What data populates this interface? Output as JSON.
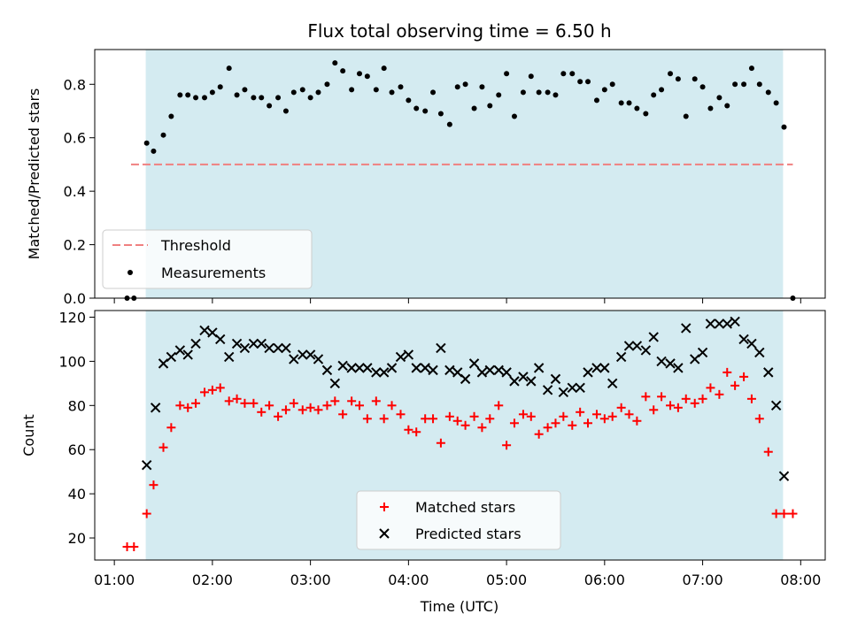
{
  "chart_data": {
    "type": "scatter",
    "title": "Flux total observing time = 6.50 h",
    "x_tick_labels": [
      "01:00",
      "02:00",
      "03:00",
      "04:00",
      "05:00",
      "06:00",
      "07:00",
      "08:00"
    ],
    "x_ticks_hours": [
      1,
      2,
      3,
      4,
      5,
      6,
      7,
      8
    ],
    "xlim_hours": [
      0.8,
      8.25
    ],
    "xlabel": "Time (UTC)",
    "observing_window_hours": [
      1.32,
      7.82
    ],
    "colors": {
      "window": "#d4ebf1",
      "threshold": "#f08080",
      "measurements": "#000000",
      "matched": "#ff0000",
      "predicted": "#000000"
    },
    "panels": [
      {
        "ylabel": "Matched/Predicted stars",
        "ylim": [
          0,
          0.93
        ],
        "y_ticks": [
          0.0,
          0.2,
          0.4,
          0.6,
          0.8
        ],
        "y_tick_labels": [
          "0.0",
          "0.2",
          "0.4",
          "0.6",
          "0.8"
        ],
        "legend": {
          "location": "lower-left",
          "entries": [
            "Threshold",
            "Measurements"
          ]
        },
        "threshold": {
          "name": "Threshold",
          "y": 0.5,
          "x_range_hours": [
            1.17,
            7.92
          ]
        },
        "measurements": {
          "name": "Measurements",
          "x_hours": [
            1.13,
            1.2,
            1.33,
            1.4,
            1.5,
            1.58,
            1.67,
            1.75,
            1.83,
            1.92,
            2.0,
            2.08,
            2.17,
            2.25,
            2.33,
            2.42,
            2.5,
            2.58,
            2.67,
            2.75,
            2.83,
            2.92,
            3.0,
            3.08,
            3.17,
            3.25,
            3.33,
            3.42,
            3.5,
            3.58,
            3.67,
            3.75,
            3.83,
            3.92,
            4.0,
            4.08,
            4.17,
            4.25,
            4.33,
            4.42,
            4.5,
            4.58,
            4.67,
            4.75,
            4.83,
            4.92,
            5.0,
            5.08,
            5.17,
            5.25,
            5.33,
            5.42,
            5.5,
            5.58,
            5.67,
            5.75,
            5.83,
            5.92,
            6.0,
            6.08,
            6.17,
            6.25,
            6.33,
            6.42,
            6.5,
            6.58,
            6.67,
            6.75,
            6.83,
            6.92,
            7.0,
            7.08,
            7.17,
            7.25,
            7.33,
            7.42,
            7.5,
            7.58,
            7.67,
            7.75,
            7.83,
            7.92
          ],
          "y": [
            0.0,
            0.0,
            0.58,
            0.55,
            0.61,
            0.68,
            0.76,
            0.76,
            0.75,
            0.75,
            0.77,
            0.79,
            0.86,
            0.76,
            0.78,
            0.75,
            0.75,
            0.72,
            0.75,
            0.7,
            0.77,
            0.78,
            0.75,
            0.77,
            0.8,
            0.88,
            0.85,
            0.78,
            0.84,
            0.83,
            0.78,
            0.86,
            0.77,
            0.79,
            0.74,
            0.71,
            0.7,
            0.77,
            0.69,
            0.65,
            0.79,
            0.8,
            0.71,
            0.79,
            0.72,
            0.76,
            0.84,
            0.68,
            0.77,
            0.83,
            0.77,
            0.77,
            0.76,
            0.84,
            0.84,
            0.81,
            0.81,
            0.74,
            0.78,
            0.8,
            0.73,
            0.73,
            0.71,
            0.69,
            0.76,
            0.78,
            0.84,
            0.82,
            0.68,
            0.82,
            0.79,
            0.71,
            0.75,
            0.72,
            0.8,
            0.8,
            0.86,
            0.8,
            0.77,
            0.73,
            0.64,
            0.0
          ]
        }
      },
      {
        "ylabel": "Count",
        "ylim": [
          10,
          123
        ],
        "y_ticks": [
          20,
          40,
          60,
          80,
          100,
          120
        ],
        "y_tick_labels": [
          "20",
          "40",
          "60",
          "80",
          "100",
          "120"
        ],
        "legend": {
          "location": "lower-center",
          "entries": [
            "Matched stars",
            "Predicted stars"
          ]
        },
        "series": [
          {
            "name": "Matched stars",
            "marker": "plus",
            "x_hours": [
              1.13,
              1.2,
              1.33,
              1.4,
              1.5,
              1.58,
              1.67,
              1.75,
              1.83,
              1.92,
              2.0,
              2.08,
              2.17,
              2.25,
              2.33,
              2.42,
              2.5,
              2.58,
              2.67,
              2.75,
              2.83,
              2.92,
              3.0,
              3.08,
              3.17,
              3.25,
              3.33,
              3.42,
              3.5,
              3.58,
              3.67,
              3.75,
              3.83,
              3.92,
              4.0,
              4.08,
              4.17,
              4.25,
              4.33,
              4.42,
              4.5,
              4.58,
              4.67,
              4.75,
              4.83,
              4.92,
              5.0,
              5.08,
              5.17,
              5.25,
              5.33,
              5.42,
              5.5,
              5.58,
              5.67,
              5.75,
              5.83,
              5.92,
              6.0,
              6.08,
              6.17,
              6.25,
              6.33,
              6.42,
              6.5,
              6.58,
              6.67,
              6.75,
              6.83,
              6.92,
              7.0,
              7.08,
              7.17,
              7.25,
              7.33,
              7.42,
              7.5,
              7.58,
              7.67,
              7.75,
              7.83,
              7.92
            ],
            "y": [
              16,
              16,
              31,
              44,
              61,
              70,
              80,
              79,
              81,
              86,
              87,
              88,
              82,
              83,
              81,
              81,
              77,
              80,
              75,
              78,
              81,
              78,
              79,
              78,
              80,
              82,
              76,
              82,
              80,
              74,
              82,
              74,
              80,
              76,
              69,
              68,
              74,
              74,
              63,
              75,
              73,
              71,
              75,
              70,
              74,
              80,
              62,
              72,
              76,
              75,
              67,
              70,
              72,
              75,
              71,
              77,
              72,
              76,
              74,
              75,
              79,
              76,
              73,
              84,
              78,
              84,
              80,
              79,
              83,
              81,
              83,
              88,
              85,
              95,
              89,
              93,
              83,
              74,
              59,
              31,
              31,
              31
            ]
          },
          {
            "name": "Predicted stars",
            "marker": "x",
            "x_hours": [
              1.33,
              1.42,
              1.5,
              1.58,
              1.67,
              1.75,
              1.83,
              1.92,
              2.0,
              2.08,
              2.17,
              2.25,
              2.33,
              2.42,
              2.5,
              2.58,
              2.67,
              2.75,
              2.83,
              2.92,
              3.0,
              3.08,
              3.17,
              3.25,
              3.33,
              3.42,
              3.5,
              3.58,
              3.67,
              3.75,
              3.83,
              3.92,
              4.0,
              4.08,
              4.17,
              4.25,
              4.33,
              4.42,
              4.5,
              4.58,
              4.67,
              4.75,
              4.83,
              4.92,
              5.0,
              5.08,
              5.17,
              5.25,
              5.33,
              5.42,
              5.5,
              5.58,
              5.67,
              5.75,
              5.83,
              5.92,
              6.0,
              6.08,
              6.17,
              6.25,
              6.33,
              6.42,
              6.5,
              6.58,
              6.67,
              6.75,
              6.83,
              6.92,
              7.0,
              7.08,
              7.17,
              7.25,
              7.33,
              7.42,
              7.5,
              7.58,
              7.67,
              7.75,
              7.83
            ],
            "y": [
              53,
              79,
              99,
              102,
              105,
              103,
              108,
              114,
              113,
              110,
              102,
              108,
              106,
              108,
              108,
              106,
              106,
              106,
              101,
              103,
              103,
              101,
              96,
              90,
              98,
              97,
              97,
              97,
              95,
              95,
              97,
              102,
              103,
              97,
              97,
              96,
              106,
              96,
              95,
              92,
              99,
              95,
              96,
              96,
              95,
              91,
              93,
              91,
              97,
              87,
              92,
              86,
              88,
              88,
              95,
              97,
              97,
              90,
              102,
              107,
              107,
              105,
              111,
              100,
              99,
              97,
              115,
              101,
              104,
              117,
              117,
              117,
              118,
              110,
              108,
              104,
              95,
              80,
              48
            ]
          }
        ]
      }
    ]
  }
}
